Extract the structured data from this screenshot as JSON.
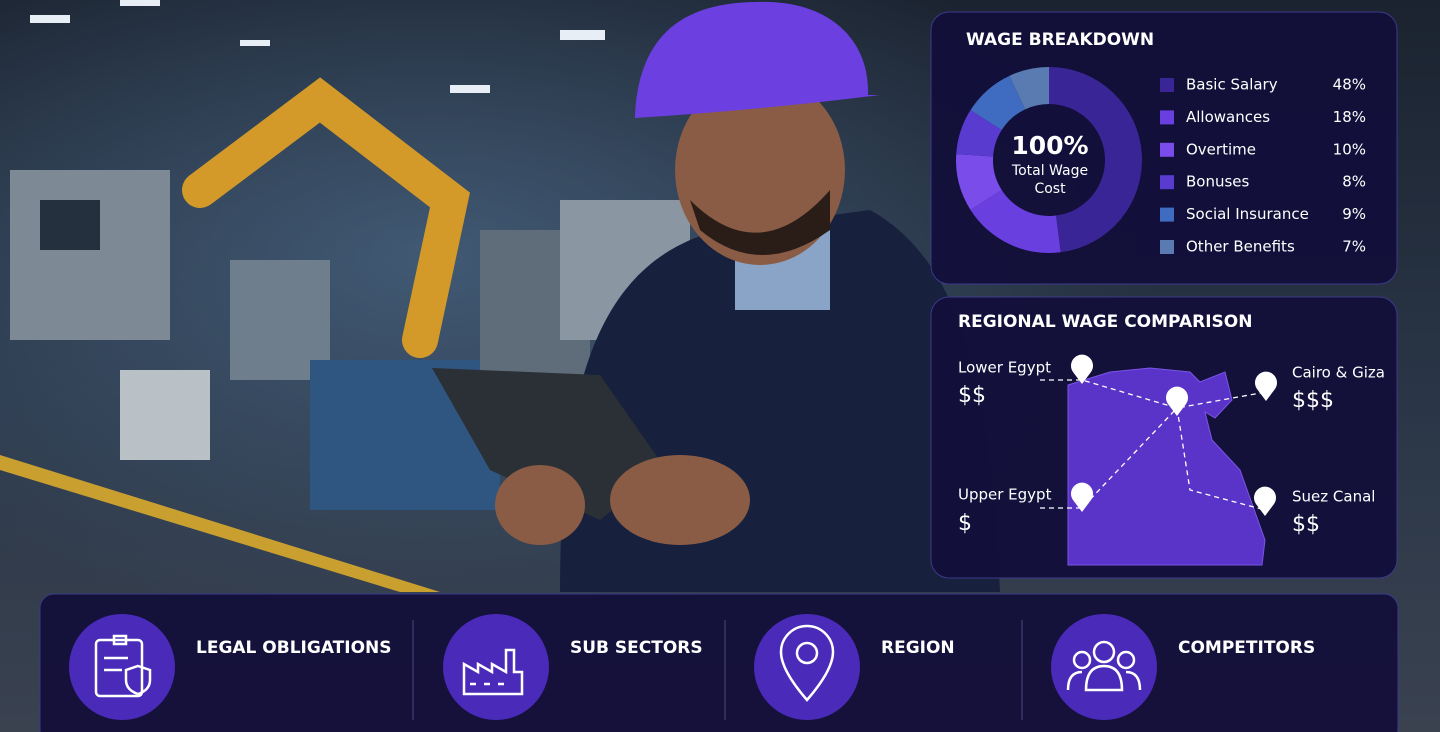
{
  "chart_data": {
    "type": "pie",
    "title": "WAGE BREAKDOWN",
    "center_value": "100%",
    "center_caption": "Total Wage Cost",
    "categories": [
      "Basic Salary",
      "Allowances",
      "Overtime",
      "Bonuses",
      "Social Insurance",
      "Other Benefits"
    ],
    "values": [
      48,
      18,
      10,
      8,
      9,
      7
    ],
    "value_labels": [
      "48%",
      "18%",
      "10%",
      "8%",
      "9%",
      "7%"
    ],
    "colors": [
      "#3a2596",
      "#6a3fe0",
      "#7a4cea",
      "#5a3bcf",
      "#3f6cc0",
      "#5a7bb2"
    ]
  },
  "regional": {
    "title": "REGIONAL WAGE COMPARISON",
    "regions": [
      {
        "name": "Lower Egypt",
        "level": "$$"
      },
      {
        "name": "Cairo & Giza",
        "level": "$$$"
      },
      {
        "name": "Upper Egypt",
        "level": "$"
      },
      {
        "name": "Suez Canal",
        "level": "$$"
      }
    ]
  },
  "features": [
    "LEGAL OBLIGATIONS",
    "SUB SECTORS",
    "REGION",
    "COMPETITORS"
  ]
}
